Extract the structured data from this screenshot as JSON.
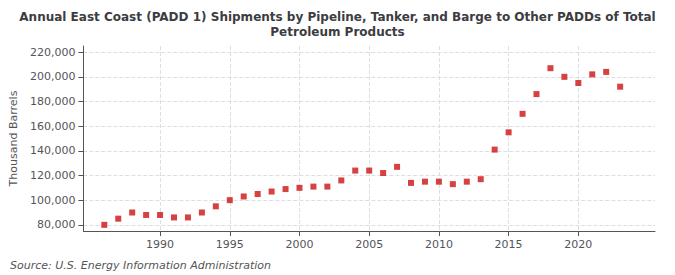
{
  "chart_data": {
    "type": "scatter",
    "title": "Annual East Coast (PADD 1) Shipments by Pipeline, Tanker, and Barge to Other PADDs of Total\nPetroleum Products",
    "ylabel": "Thousand Barrels",
    "annotations": [
      "Source: U.S. Energy Information Administration"
    ],
    "x": [
      1986,
      1987,
      1988,
      1989,
      1990,
      1991,
      1992,
      1993,
      1994,
      1995,
      1996,
      1997,
      1998,
      1999,
      2000,
      2001,
      2002,
      2003,
      2004,
      2005,
      2006,
      2007,
      2008,
      2009,
      2010,
      2011,
      2012,
      2013,
      2014,
      2015,
      2016,
      2017,
      2018,
      2019,
      2020,
      2021,
      2022,
      2023
    ],
    "values": [
      80000,
      85000,
      90000,
      88000,
      88000,
      86000,
      86000,
      90000,
      95000,
      100000,
      103000,
      105000,
      107000,
      109000,
      110000,
      111000,
      111000,
      116000,
      124000,
      124000,
      122000,
      127000,
      114000,
      115000,
      115000,
      113000,
      115000,
      117000,
      141000,
      155000,
      170000,
      186000,
      207000,
      200000,
      195000,
      202000,
      204000,
      192000
    ],
    "color": "#cc1111",
    "marker": "square",
    "xlim": [
      1984.5,
      2025.5
    ],
    "xticks": [
      1990,
      1995,
      2000,
      2005,
      2010,
      2015,
      2020
    ],
    "ylim": [
      75000,
      225000
    ],
    "yticks": [
      {
        "value": 80000,
        "label": "80,000"
      },
      {
        "value": 100000,
        "label": "100,000"
      },
      {
        "value": 120000,
        "label": "120,000"
      },
      {
        "value": 140000,
        "label": "140,000"
      },
      {
        "value": 160000,
        "label": "160,000"
      },
      {
        "value": 180000,
        "label": "180,000"
      },
      {
        "value": 200000,
        "label": "200,000"
      },
      {
        "value": 220000,
        "label": "220,000"
      }
    ],
    "grid": true
  }
}
